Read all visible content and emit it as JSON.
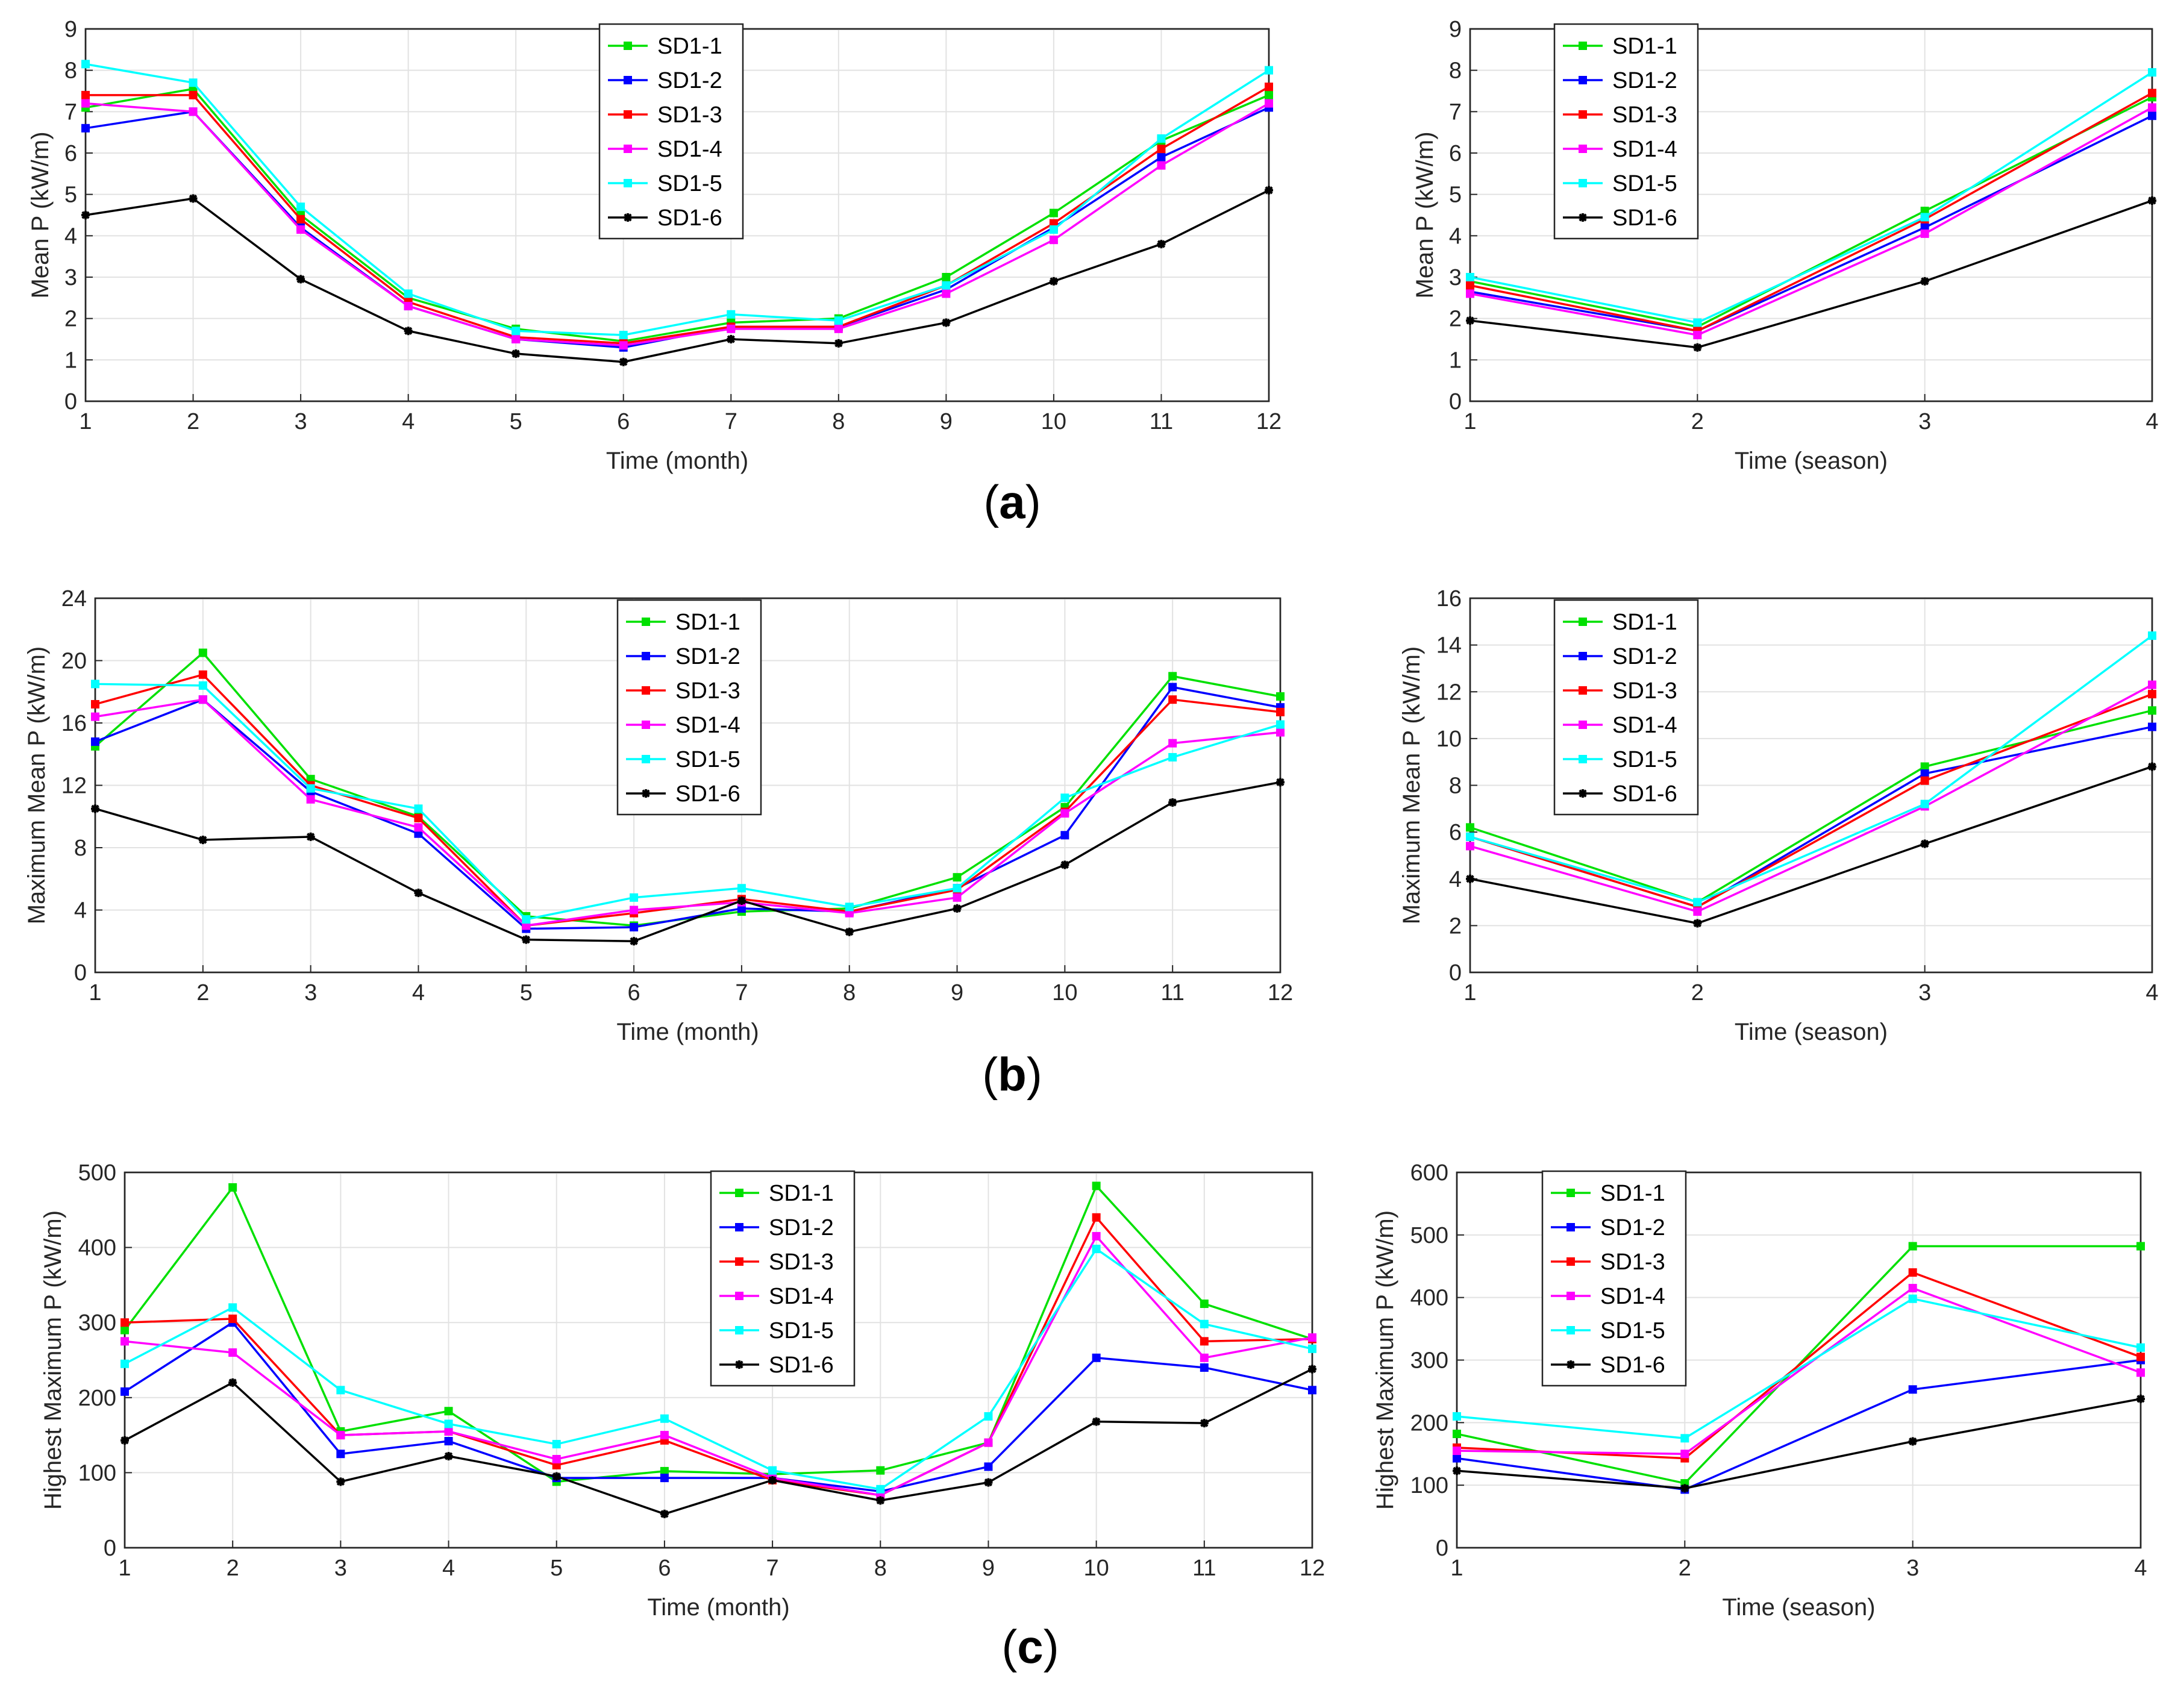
{
  "panel_labels": [
    "a",
    "b",
    "c"
  ],
  "colors": {
    "SD1-1": "#00e000",
    "SD1-2": "#0000ff",
    "SD1-3": "#ff0000",
    "SD1-4": "#ff00ff",
    "SD1-5": "#00ffff",
    "SD1-6": "#000000"
  },
  "chart_data": [
    {
      "id": "a-month",
      "type": "line",
      "panel": "a",
      "xlabel": "Time (month)",
      "ylabel": "Mean P (kW/m)",
      "xlim": [
        1,
        12
      ],
      "ylim": [
        0,
        9
      ],
      "xticks": [
        "1",
        "2",
        "3",
        "4",
        "5",
        "6",
        "7",
        "8",
        "9",
        "10",
        "11",
        "12"
      ],
      "yticks": [
        "0",
        "1",
        "2",
        "3",
        "4",
        "5",
        "6",
        "7",
        "8",
        "9"
      ],
      "legend_position": "top-center",
      "x": [
        1,
        2,
        3,
        4,
        5,
        6,
        7,
        8,
        9,
        10,
        11,
        12
      ],
      "series": [
        {
          "name": "SD1-1",
          "values": [
            7.1,
            7.55,
            4.5,
            2.5,
            1.75,
            1.45,
            1.9,
            2.0,
            3.0,
            4.55,
            6.3,
            7.4
          ]
        },
        {
          "name": "SD1-2",
          "values": [
            6.6,
            7.0,
            4.2,
            2.3,
            1.5,
            1.3,
            1.8,
            1.8,
            2.7,
            4.2,
            5.9,
            7.1
          ]
        },
        {
          "name": "SD1-3",
          "values": [
            7.4,
            7.4,
            4.4,
            2.4,
            1.55,
            1.4,
            1.8,
            1.8,
            2.8,
            4.3,
            6.1,
            7.6
          ]
        },
        {
          "name": "SD1-4",
          "values": [
            7.2,
            7.0,
            4.15,
            2.3,
            1.5,
            1.35,
            1.75,
            1.75,
            2.6,
            3.9,
            5.7,
            7.2
          ]
        },
        {
          "name": "SD1-5",
          "values": [
            8.15,
            7.7,
            4.7,
            2.6,
            1.7,
            1.6,
            2.1,
            1.95,
            2.8,
            4.15,
            6.35,
            8.0
          ]
        },
        {
          "name": "SD1-6",
          "values": [
            4.5,
            4.9,
            2.95,
            1.7,
            1.15,
            0.95,
            1.5,
            1.4,
            1.9,
            2.9,
            3.8,
            5.1
          ]
        }
      ]
    },
    {
      "id": "a-season",
      "type": "line",
      "panel": "a",
      "xlabel": "Time (season)",
      "ylabel": "Mean P (kW/m)",
      "xlim": [
        1,
        4
      ],
      "ylim": [
        0,
        9
      ],
      "xticks": [
        "1",
        "2",
        "3",
        "4"
      ],
      "yticks": [
        "0",
        "1",
        "2",
        "3",
        "4",
        "5",
        "6",
        "7",
        "8",
        "9"
      ],
      "legend_position": "top-left",
      "x": [
        1,
        2,
        3,
        4
      ],
      "series": [
        {
          "name": "SD1-1",
          "values": [
            2.9,
            1.8,
            4.6,
            7.35
          ]
        },
        {
          "name": "SD1-2",
          "values": [
            2.65,
            1.7,
            4.2,
            6.9
          ]
        },
        {
          "name": "SD1-3",
          "values": [
            2.8,
            1.7,
            4.4,
            7.45
          ]
        },
        {
          "name": "SD1-4",
          "values": [
            2.6,
            1.6,
            4.05,
            7.1
          ]
        },
        {
          "name": "SD1-5",
          "values": [
            3.0,
            1.9,
            4.45,
            7.95
          ]
        },
        {
          "name": "SD1-6",
          "values": [
            1.95,
            1.3,
            2.9,
            4.85
          ]
        }
      ]
    },
    {
      "id": "b-month",
      "type": "line",
      "panel": "b",
      "xlabel": "Time (month)",
      "ylabel": "Maximum Mean P (kW/m)",
      "xlim": [
        1,
        12
      ],
      "ylim": [
        0,
        24
      ],
      "xticks": [
        "1",
        "2",
        "3",
        "4",
        "5",
        "6",
        "7",
        "8",
        "9",
        "10",
        "11",
        "12"
      ],
      "yticks": [
        "0",
        "4",
        "8",
        "12",
        "16",
        "20",
        "24"
      ],
      "legend_position": "top-center",
      "x": [
        1,
        2,
        3,
        4,
        5,
        6,
        7,
        8,
        9,
        10,
        11,
        12
      ],
      "series": [
        {
          "name": "SD1-1",
          "values": [
            14.5,
            20.5,
            12.4,
            10.0,
            3.6,
            3.0,
            3.9,
            4.1,
            6.1,
            10.6,
            19.0,
            17.7
          ]
        },
        {
          "name": "SD1-2",
          "values": [
            14.8,
            17.5,
            11.6,
            8.9,
            2.8,
            2.9,
            4.1,
            3.9,
            5.4,
            8.8,
            18.3,
            17.0
          ]
        },
        {
          "name": "SD1-3",
          "values": [
            17.2,
            19.1,
            12.0,
            9.9,
            3.0,
            3.8,
            4.7,
            3.9,
            5.3,
            10.3,
            17.5,
            16.7
          ]
        },
        {
          "name": "SD1-4",
          "values": [
            16.4,
            17.5,
            11.1,
            9.3,
            3.0,
            4.0,
            4.5,
            3.8,
            4.8,
            10.2,
            14.7,
            15.4
          ]
        },
        {
          "name": "SD1-5",
          "values": [
            18.5,
            18.4,
            11.8,
            10.5,
            3.4,
            4.8,
            5.4,
            4.2,
            5.4,
            11.2,
            13.8,
            15.9
          ]
        },
        {
          "name": "SD1-6",
          "values": [
            10.5,
            8.5,
            8.7,
            5.1,
            2.1,
            2.0,
            4.6,
            2.6,
            4.1,
            6.9,
            10.9,
            12.2
          ]
        }
      ]
    },
    {
      "id": "b-season",
      "type": "line",
      "panel": "b",
      "xlabel": "Time (season)",
      "ylabel": "Maximum Mean P (kW/m)",
      "xlim": [
        1,
        4
      ],
      "ylim": [
        0,
        16
      ],
      "xticks": [
        "1",
        "2",
        "3",
        "4"
      ],
      "yticks": [
        "0",
        "2",
        "4",
        "6",
        "8",
        "10",
        "12",
        "14",
        "16"
      ],
      "legend_position": "top-left",
      "x": [
        1,
        2,
        3,
        4
      ],
      "series": [
        {
          "name": "SD1-1",
          "values": [
            6.2,
            3.0,
            8.8,
            11.2
          ]
        },
        {
          "name": "SD1-2",
          "values": [
            5.8,
            2.8,
            8.5,
            10.5
          ]
        },
        {
          "name": "SD1-3",
          "values": [
            5.8,
            2.8,
            8.2,
            11.9
          ]
        },
        {
          "name": "SD1-4",
          "values": [
            5.4,
            2.6,
            7.1,
            12.3
          ]
        },
        {
          "name": "SD1-5",
          "values": [
            5.8,
            3.0,
            7.2,
            14.4
          ]
        },
        {
          "name": "SD1-6",
          "values": [
            4.0,
            2.1,
            5.5,
            8.8
          ]
        }
      ]
    },
    {
      "id": "c-month",
      "type": "line",
      "panel": "c",
      "xlabel": "Time (month)",
      "ylabel": "Highest Maximum P (kW/m)",
      "xlim": [
        1,
        12
      ],
      "ylim": [
        0,
        500
      ],
      "xticks": [
        "1",
        "2",
        "3",
        "4",
        "5",
        "6",
        "7",
        "8",
        "9",
        "10",
        "11",
        "12"
      ],
      "yticks": [
        "0",
        "100",
        "200",
        "300",
        "400",
        "500"
      ],
      "legend_position": "top-center",
      "x": [
        1,
        2,
        3,
        4,
        5,
        6,
        7,
        8,
        9,
        10,
        11,
        12
      ],
      "series": [
        {
          "name": "SD1-1",
          "values": [
            290,
            480,
            155,
            182,
            88,
            102,
            98,
            103,
            140,
            482,
            325,
            278
          ]
        },
        {
          "name": "SD1-2",
          "values": [
            208,
            300,
            125,
            142,
            93,
            93,
            93,
            75,
            108,
            253,
            240,
            210
          ]
        },
        {
          "name": "SD1-3",
          "values": [
            300,
            305,
            150,
            155,
            110,
            143,
            90,
            70,
            140,
            440,
            275,
            278
          ]
        },
        {
          "name": "SD1-4",
          "values": [
            275,
            260,
            150,
            155,
            118,
            150,
            93,
            70,
            140,
            415,
            253,
            280
          ]
        },
        {
          "name": "SD1-5",
          "values": [
            245,
            320,
            210,
            165,
            138,
            172,
            103,
            78,
            175,
            398,
            298,
            265
          ]
        },
        {
          "name": "SD1-6",
          "values": [
            143,
            220,
            88,
            122,
            95,
            45,
            90,
            63,
            87,
            168,
            166,
            238
          ]
        }
      ]
    },
    {
      "id": "c-season",
      "type": "line",
      "panel": "c",
      "xlabel": "Time (season)",
      "ylabel": "Highest Maximum P (kW/m)",
      "xlim": [
        1,
        4
      ],
      "ylim": [
        0,
        600
      ],
      "xticks": [
        "1",
        "2",
        "3",
        "4"
      ],
      "yticks": [
        "0",
        "100",
        "200",
        "300",
        "400",
        "500",
        "600"
      ],
      "legend_position": "top-left",
      "x": [
        1,
        2,
        3,
        4
      ],
      "series": [
        {
          "name": "SD1-1",
          "values": [
            182,
            103,
            482,
            482
          ]
        },
        {
          "name": "SD1-2",
          "values": [
            143,
            93,
            253,
            300
          ]
        },
        {
          "name": "SD1-3",
          "values": [
            160,
            143,
            440,
            305
          ]
        },
        {
          "name": "SD1-4",
          "values": [
            155,
            150,
            415,
            280
          ]
        },
        {
          "name": "SD1-5",
          "values": [
            210,
            175,
            398,
            320
          ]
        },
        {
          "name": "SD1-6",
          "values": [
            123,
            95,
            170,
            238
          ]
        }
      ]
    }
  ]
}
